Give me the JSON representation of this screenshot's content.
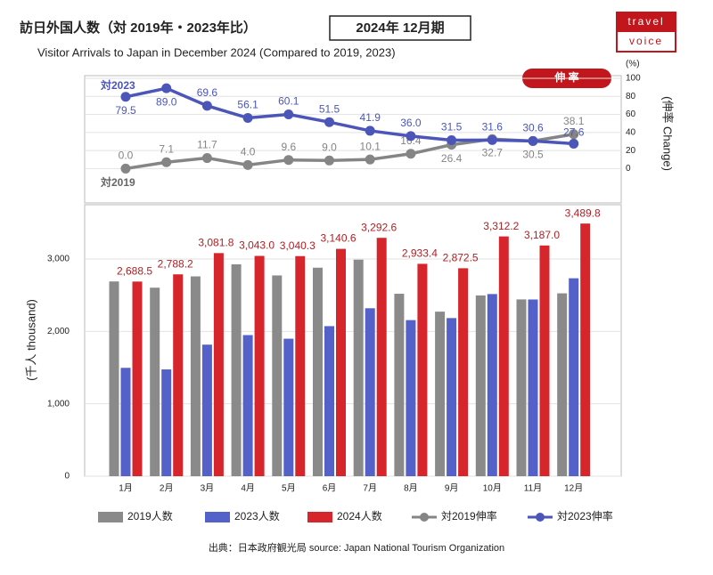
{
  "header": {
    "title": "訪日外国人数（対 2019年・2023年比）",
    "period": "2024年 12月期",
    "subtitle": "Visitor Arrivals to Japan in December 2024 (Compared to 2019, 2023)"
  },
  "logo": [
    "travel",
    "voice"
  ],
  "source": "出典：日本政府観光局 source: Japan National Tourism Organization",
  "chart_data": [
    {
      "type": "line",
      "y2label": "(伸率 Change)",
      "unit": "(%)",
      "badge": "伸 率",
      "annotations": [
        "対2023",
        "対2019"
      ],
      "categories": [
        "1月",
        "2月",
        "3月",
        "4月",
        "5月",
        "6月",
        "7月",
        "8月",
        "9月",
        "10月",
        "11月",
        "12月"
      ],
      "y2lim": [
        -40,
        100
      ],
      "y2ticks": [
        0,
        20,
        40,
        60,
        80,
        100
      ],
      "grid": true,
      "series": [
        {
          "name": "対2019伸率",
          "color": "#858585",
          "axis": "y2",
          "values": [
            0.0,
            7.1,
            11.7,
            4.0,
            9.6,
            9.0,
            10.1,
            16.4,
            26.4,
            32.7,
            30.5,
            38.1
          ],
          "value_labels": [
            "0.0",
            "7.1",
            "11.7",
            "4.0",
            "9.6",
            "9.0",
            "10.1",
            "16.4",
            "26.4",
            "32.7",
            "30.5",
            "38.1"
          ]
        },
        {
          "name": "対2023伸率",
          "color": "#4b56b8",
          "axis": "y2",
          "values": [
            79.5,
            89.0,
            69.6,
            56.1,
            60.1,
            51.5,
            41.9,
            36.0,
            31.5,
            31.6,
            30.6,
            27.6
          ],
          "value_labels": [
            "79.5",
            "89.0",
            "69.6",
            "56.1",
            "60.1",
            "51.5",
            "41.9",
            "36.0",
            "31.5",
            "31.6",
            "30.6",
            "27.6"
          ]
        }
      ]
    },
    {
      "type": "bar",
      "ylabel": "(千人 thousand)",
      "categories": [
        "1月",
        "2月",
        "3月",
        "4月",
        "5月",
        "6月",
        "7月",
        "8月",
        "9月",
        "10月",
        "11月",
        "12月"
      ],
      "ylim": [
        0,
        3750
      ],
      "yticks": [
        0,
        {
          "value": 1000,
          "label": "1,000"
        },
        {
          "value": 2000,
          "label": "2,000"
        },
        {
          "value": 3000,
          "label": "3,000"
        }
      ],
      "grid": true,
      "series": [
        {
          "name": "2019人数",
          "color": "#8a8a8a",
          "values": [
            2690,
            2604,
            2760,
            2927,
            2773,
            2880,
            2991,
            2520,
            2273,
            2497,
            2442,
            2526
          ]
        },
        {
          "name": "2023人数",
          "color": "#5461c9",
          "values": [
            1497,
            1475,
            1817,
            1949,
            1899,
            2073,
            2320,
            2156,
            2184,
            2516,
            2441,
            2734
          ]
        },
        {
          "name": "2024人数",
          "color": "#d7262b",
          "values": [
            2688.5,
            2788.2,
            3081.8,
            3043.0,
            3040.3,
            3140.6,
            3292.6,
            2933.4,
            2872.5,
            3312.2,
            3187.0,
            3489.8
          ],
          "value_labels": [
            "2,688.5",
            "2,788.2",
            "3,081.8",
            "3,043.0",
            "3,040.3",
            "3,140.6",
            "3,292.6",
            "2,933.4",
            "2,872.5",
            "3,312.2",
            "3,187.0",
            "3,489.8"
          ]
        }
      ]
    }
  ]
}
